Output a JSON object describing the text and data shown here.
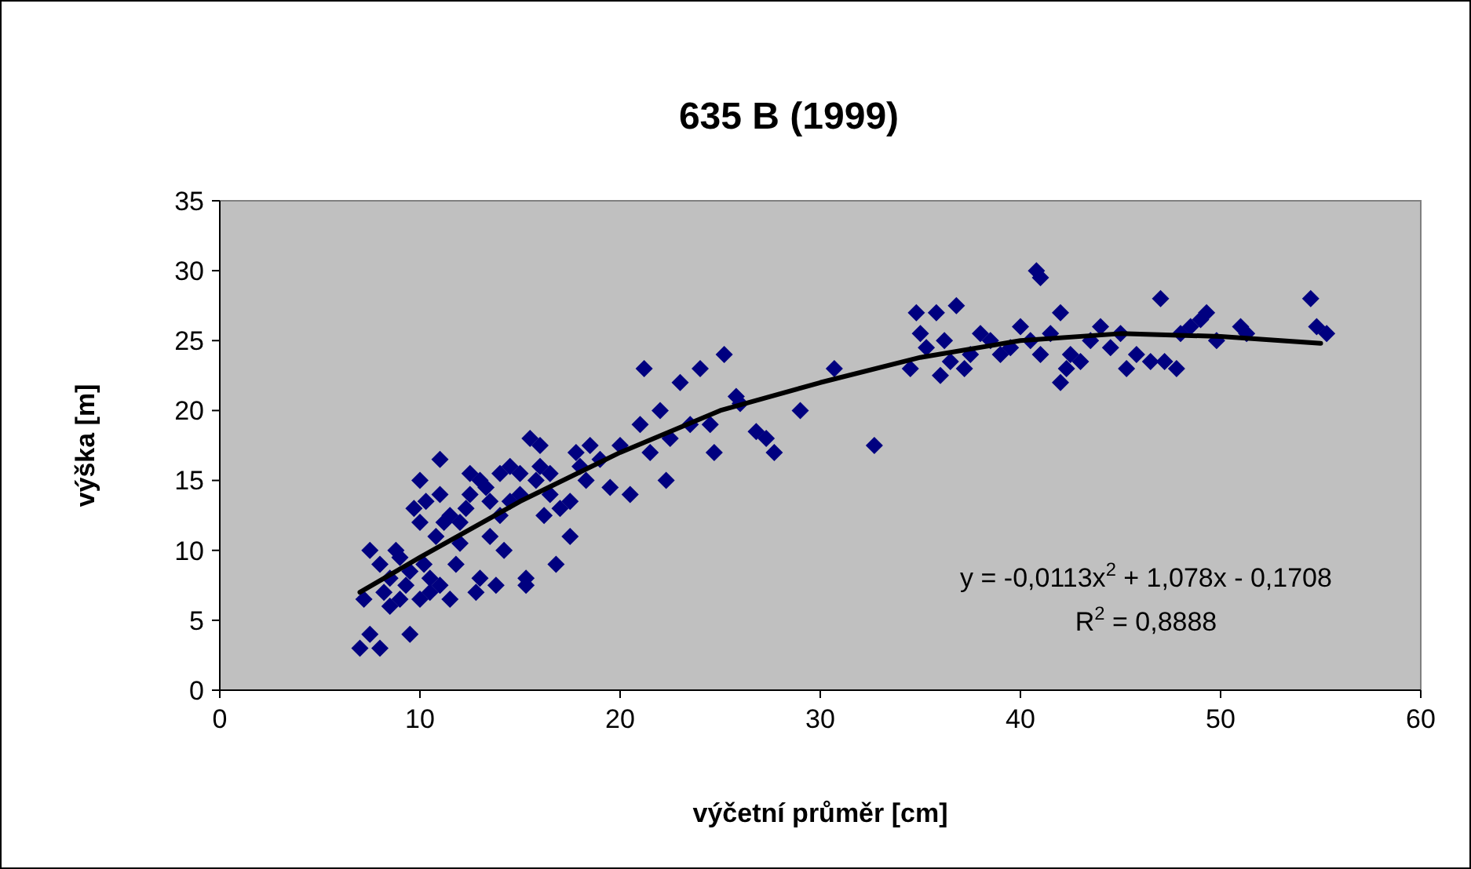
{
  "chart_data": {
    "type": "scatter",
    "title": "635 B (1999)",
    "xlabel": "výčetní průměr [cm]",
    "ylabel": "výška [m]",
    "xlim": [
      0,
      60
    ],
    "xticks": [
      0,
      10,
      20,
      30,
      40,
      50,
      60
    ],
    "ylim": [
      0,
      35
    ],
    "yticks": [
      0,
      5,
      10,
      15,
      20,
      25,
      30,
      35
    ],
    "grid": false,
    "annotations": [
      "y = -0,0113x$^{2}$ + 1,078x - 0,1708",
      "R$^{2}$ = 0,8888"
    ],
    "series": [
      {
        "color": "#000080",
        "marker": "diamond",
        "x": [
          7,
          7.5,
          8,
          7.2,
          7.5,
          8,
          8.2,
          8.5,
          8.8,
          9,
          9.3,
          9.5,
          9.7,
          10,
          10,
          10.2,
          10.5,
          10.5,
          10.8,
          11,
          11,
          11.2,
          11.5,
          11.8,
          12,
          12.3,
          12.5,
          12.8,
          13,
          13.3,
          13.5,
          13.8,
          14,
          14.2,
          14.5,
          15,
          15.3,
          15.3,
          15.5,
          15.8,
          16,
          16.2,
          16.5,
          16.8,
          17,
          17.5,
          17.8,
          18,
          18.3,
          18.5,
          19,
          19.5,
          20,
          20.5,
          21,
          21.2,
          21.5,
          22,
          22.3,
          22.5,
          23,
          23.5,
          24,
          24.5,
          24.7,
          25.2,
          25.8,
          26,
          26.8,
          27.3,
          27.7,
          29,
          30.7,
          32.7,
          34.5,
          34.8,
          35,
          35.3,
          35.8,
          36,
          36.2,
          36.5,
          36.8,
          37.2,
          37.5,
          38,
          38.5,
          39,
          39.5,
          40,
          40.5,
          40.8,
          41,
          41,
          41.5,
          42,
          42,
          42.3,
          42.5,
          43,
          43.5,
          44,
          44.5,
          45,
          45.3,
          45.8,
          46.5,
          47,
          47.2,
          47.8,
          48,
          48.5,
          49,
          49.3,
          49.8,
          51,
          51.3,
          54.5,
          54.8,
          55.3,
          8.5,
          9,
          9.5,
          10,
          10.3,
          11,
          11.5,
          12,
          12.5,
          13,
          13.5,
          14,
          14.5,
          15,
          16,
          16.5,
          17.5
        ],
        "values": [
          3,
          4,
          3,
          6.5,
          10,
          9,
          7,
          8,
          10,
          6.5,
          7.5,
          4,
          13,
          15,
          12,
          9,
          8,
          7,
          11,
          14,
          16.5,
          12,
          6.5,
          9,
          10.5,
          13,
          15.5,
          7,
          8,
          14.5,
          11,
          7.5,
          15.5,
          10,
          13.5,
          14,
          8,
          7.5,
          18,
          15,
          17.5,
          12.5,
          15.5,
          9,
          13,
          11,
          17,
          16,
          15,
          17.5,
          16.5,
          14.5,
          17.5,
          14,
          19,
          23,
          17,
          20,
          15,
          18,
          22,
          19,
          23,
          19,
          17,
          24,
          21,
          20.5,
          18.5,
          18,
          17,
          20,
          23,
          17.5,
          23,
          27,
          25.5,
          24.5,
          27,
          22.5,
          25,
          23.5,
          27.5,
          23,
          24,
          25.5,
          25,
          24,
          24.5,
          26,
          25,
          30,
          29.5,
          24,
          25.5,
          27,
          22,
          23,
          24,
          23.5,
          25,
          26,
          24.5,
          25.5,
          23,
          24,
          23.5,
          28,
          23.5,
          23,
          25.5,
          26,
          26.5,
          27,
          25,
          26,
          25.5,
          28,
          26,
          25.5,
          6,
          9.5,
          8.5,
          6.5,
          13.5,
          7.5,
          12.5,
          12,
          14,
          15,
          13.5,
          12.5,
          16,
          15.5,
          16,
          14,
          13.5
        ]
      },
      {
        "type": "line",
        "color": "#000000",
        "marker": "none",
        "line_style": "solid",
        "x": [
          7,
          10,
          15,
          20,
          25,
          30,
          35,
          40,
          45,
          50,
          55
        ],
        "values": [
          7,
          9.5,
          13.5,
          17,
          20,
          22,
          23.8,
          25,
          25.5,
          25.3,
          24.8
        ]
      }
    ]
  }
}
